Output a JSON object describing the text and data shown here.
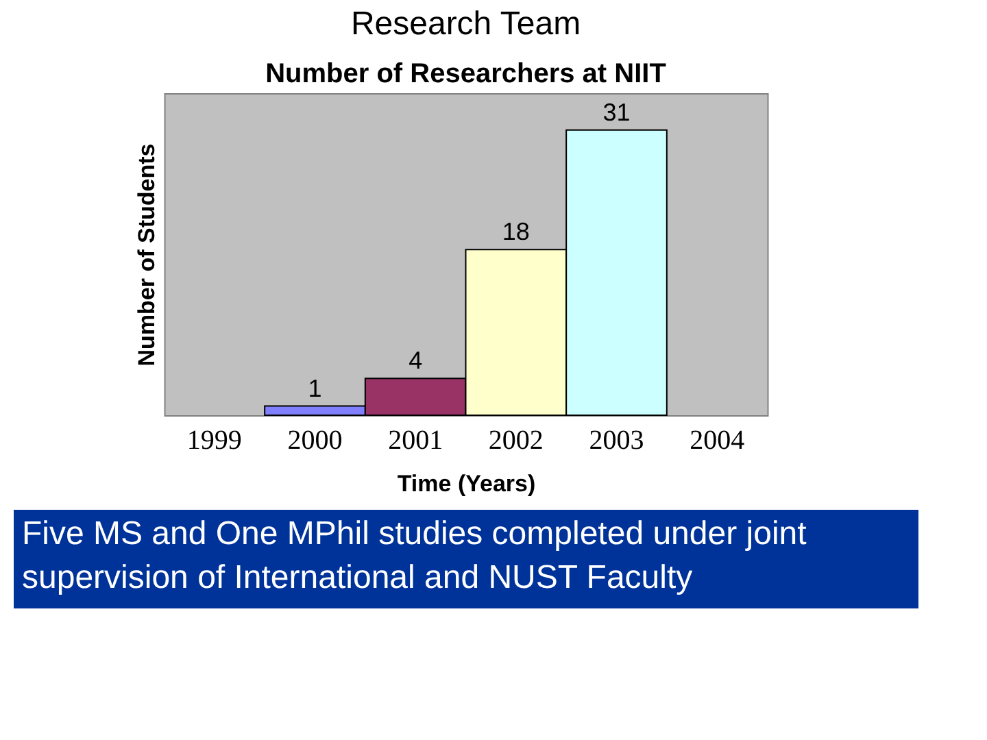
{
  "chart_data": {
    "type": "bar",
    "title": "Research Team",
    "subtitle": "Number of Researchers at NIIT",
    "xlabel": "Time (Years)",
    "ylabel": "Number of Students",
    "categories": [
      "1999",
      "2000",
      "2001",
      "2002",
      "2003",
      "2004"
    ],
    "values": [
      null,
      1,
      4,
      18,
      31,
      null
    ],
    "colors": [
      null,
      "#8080ff",
      "#993366",
      "#ffffcc",
      "#ccffff",
      null
    ],
    "data_labels": true,
    "grid": false,
    "annotations": [
      "Five MS and One MPhil studies completed under joint supervision of International and NUST Faculty"
    ]
  }
}
